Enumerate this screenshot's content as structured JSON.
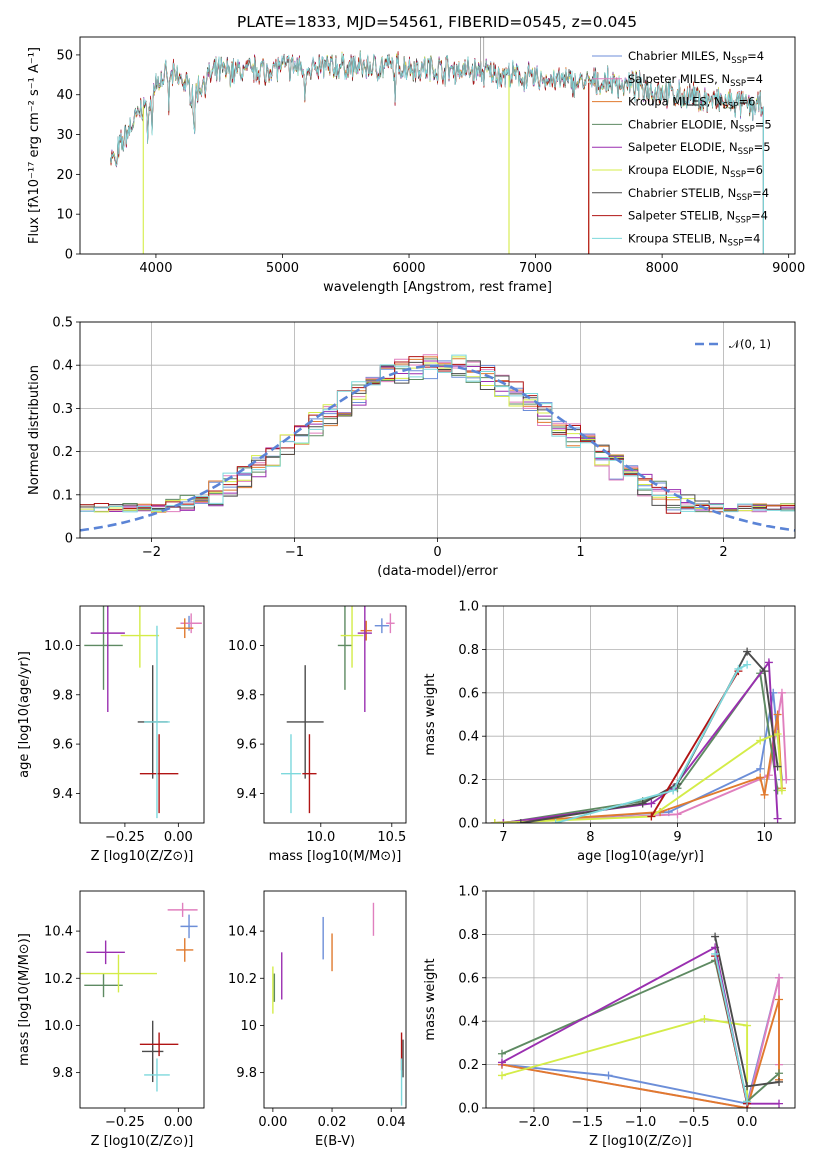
{
  "figure_title": "PLATE=1833, MJD=54561, FIBERID=0545, z=0.045",
  "colors": {
    "Chabrier MILES": "#6c8ed8",
    "Salpeter MILES": "#e07fbe",
    "Kroupa MILES": "#e07a2e",
    "Chabrier ELODIE": "#5e8a62",
    "Salpeter ELODIE": "#9a2fb0",
    "Kroupa ELODIE": "#d4ec48",
    "Chabrier STELIB": "#4b4b4b",
    "Salpeter STELIB": "#b01414",
    "Kroupa STELIB": "#7dd8dc",
    "normal": "#5b84d6"
  },
  "chart_data": [
    {
      "id": "spectrum",
      "type": "line",
      "title": "PLATE=1833, MJD=54561, FIBERID=0545, z=0.045",
      "xlabel": "wavelength [Angstrom, rest frame]",
      "ylabel": "Flux [fλ10⁻¹⁷ erg cm⁻² s⁻¹ A⁻¹]",
      "xlim": [
        3400,
        9050
      ],
      "ylim": [
        0,
        54.5
      ],
      "xticks": [
        4000,
        5000,
        6000,
        7000,
        8000,
        9000
      ],
      "yticks": [
        0,
        10,
        20,
        30,
        40,
        50
      ],
      "grid": false,
      "legend_position": "top-right",
      "legend": [
        "Chabrier MILES, N_SSP=4",
        "Salpeter MILES, N_SSP=4",
        "Kroupa MILES, N_SSP=6",
        "Chabrier ELODIE, N_SSP=5",
        "Salpeter ELODIE, N_SSP=5",
        "Kroupa ELODIE, N_SSP=6",
        "Chabrier STELIB, N_SSP=4",
        "Salpeter STELIB, N_SSP=4",
        "Kroupa STELIB, N_SSP=4"
      ],
      "continuum": [
        [
          3640,
          29
        ],
        [
          3700,
          26
        ],
        [
          3800,
          32
        ],
        [
          3900,
          37
        ],
        [
          4000,
          43
        ],
        [
          4100,
          45
        ],
        [
          4200,
          44
        ],
        [
          4300,
          40
        ],
        [
          4400,
          44
        ],
        [
          4500,
          46
        ],
        [
          4700,
          46
        ],
        [
          4900,
          47
        ],
        [
          5000,
          47
        ],
        [
          5200,
          47
        ],
        [
          5500,
          47
        ],
        [
          6000,
          47
        ],
        [
          6500,
          46
        ],
        [
          7000,
          44
        ],
        [
          7400,
          43
        ],
        [
          7600,
          43
        ],
        [
          7800,
          42
        ],
        [
          8100,
          40
        ],
        [
          8500,
          38
        ],
        [
          8800,
          37
        ]
      ],
      "model_ranges": [
        {
          "series": "Kroupa ELODIE",
          "x": [
            3900,
            6790
          ]
        },
        {
          "series": "Kroupa MILES",
          "x": [
            3640,
            7420
          ]
        },
        {
          "series": "Salpeter STELIB",
          "x": [
            3640,
            7420
          ]
        },
        {
          "series": "Chabrier STELIB",
          "x": [
            3640,
            8800
          ]
        },
        {
          "series": "Kroupa STELIB",
          "x": [
            3640,
            8800
          ]
        }
      ]
    },
    {
      "id": "residuals",
      "type": "line",
      "xlabel": "(data-model)/error",
      "ylabel": "Normed distribution",
      "xlim": [
        -2.5,
        2.5
      ],
      "ylim": [
        0,
        0.5
      ],
      "xticks": [
        -2,
        -1,
        0,
        1,
        2
      ],
      "yticks": [
        0.0,
        0.1,
        0.2,
        0.3,
        0.4,
        0.5
      ],
      "grid": true,
      "legend_position": "top-right",
      "legend": [
        "𝒩(0, 1)"
      ],
      "normal": {
        "mean": 0,
        "sigma": 1
      },
      "histogram_bins": 50
    },
    {
      "id": "age-vs-Z",
      "type": "scatter",
      "xlabel": "Z [log10(Z/Z⊙)]",
      "ylabel": "age  [log10(age/yr)]",
      "xlim": [
        -0.46,
        0.12
      ],
      "ylim": [
        9.28,
        10.16
      ],
      "xticks": [
        -0.25,
        0.0
      ],
      "yticks": [
        9.4,
        9.6,
        9.8,
        10.0
      ],
      "grid": false,
      "points": [
        {
          "series": "Chabrier MILES",
          "x": 0.05,
          "y": 10.09,
          "xerr": 0.04,
          "yerr": 0.03
        },
        {
          "series": "Salpeter MILES",
          "x": 0.06,
          "y": 10.09,
          "xerr": 0.05,
          "yerr": 0.04
        },
        {
          "series": "Kroupa MILES",
          "x": 0.03,
          "y": 10.07,
          "xerr": 0.04,
          "yerr": 0.04
        },
        {
          "series": "Chabrier ELODIE",
          "x": -0.35,
          "y": 10.0,
          "xerr": 0.09,
          "yerr": 0.18
        },
        {
          "series": "Salpeter ELODIE",
          "x": -0.33,
          "y": 10.05,
          "xerr": 0.08,
          "yerr": 0.32
        },
        {
          "series": "Kroupa ELODIE",
          "x": -0.18,
          "y": 10.04,
          "xerr": 0.09,
          "yerr": 0.13
        },
        {
          "series": "Chabrier STELIB",
          "x": -0.12,
          "y": 9.69,
          "xerr": 0.07,
          "yerr": 0.23
        },
        {
          "series": "Salpeter STELIB",
          "x": -0.09,
          "y": 9.48,
          "xerr": 0.09,
          "yerr": 0.16
        },
        {
          "series": "Kroupa STELIB",
          "x": -0.1,
          "y": 9.69,
          "xerr": 0.06,
          "yerr": 0.39
        }
      ]
    },
    {
      "id": "age-vs-mass",
      "type": "scatter",
      "xlabel": "mass [log10(M/M⊙)]",
      "ylabel": "",
      "xlim": [
        9.6,
        10.6
      ],
      "ylim": [
        9.28,
        10.16
      ],
      "xticks": [
        10.0,
        10.5
      ],
      "yticks": [
        9.4,
        9.6,
        9.8,
        10.0
      ],
      "grid": false,
      "points": [
        {
          "series": "Chabrier MILES",
          "x": 10.43,
          "y": 10.08,
          "xerr": 0.05,
          "yerr": 0.03
        },
        {
          "series": "Salpeter MILES",
          "x": 10.49,
          "y": 10.09,
          "xerr": 0.03,
          "yerr": 0.04
        },
        {
          "series": "Kroupa MILES",
          "x": 10.32,
          "y": 10.06,
          "xerr": 0.04,
          "yerr": 0.04
        },
        {
          "series": "Chabrier ELODIE",
          "x": 10.17,
          "y": 10.0,
          "xerr": 0.05,
          "yerr": 0.18
        },
        {
          "series": "Salpeter ELODIE",
          "x": 10.31,
          "y": 10.05,
          "xerr": 0.05,
          "yerr": 0.32
        },
        {
          "series": "Kroupa ELODIE",
          "x": 10.22,
          "y": 10.04,
          "xerr": 0.08,
          "yerr": 0.13
        },
        {
          "series": "Chabrier STELIB",
          "x": 9.89,
          "y": 9.69,
          "xerr": 0.13,
          "yerr": 0.23
        },
        {
          "series": "Salpeter STELIB",
          "x": 9.92,
          "y": 9.48,
          "xerr": 0.05,
          "yerr": 0.16
        },
        {
          "series": "Kroupa STELIB",
          "x": 9.79,
          "y": 9.48,
          "xerr": 0.07,
          "yerr": 0.16
        }
      ]
    },
    {
      "id": "weight-vs-age",
      "type": "line",
      "xlabel": "age  [log10(age/yr)]",
      "ylabel": "mass weight",
      "xlim": [
        6.8,
        10.35
      ],
      "ylim": [
        0,
        1.0
      ],
      "xticks": [
        7,
        8,
        9,
        10
      ],
      "yticks": [
        0.0,
        0.2,
        0.4,
        0.6,
        0.8,
        1.0
      ],
      "grid": true,
      "series": [
        {
          "name": "Chabrier MILES",
          "points": [
            [
              6.9,
              0.0
            ],
            [
              8.9,
              0.05
            ],
            [
              9.95,
              0.25
            ],
            [
              10.1,
              0.6
            ],
            [
              10.2,
              0.2
            ]
          ]
        },
        {
          "name": "Salpeter MILES",
          "points": [
            [
              6.9,
              0.0
            ],
            [
              9.0,
              0.04
            ],
            [
              10.05,
              0.22
            ],
            [
              10.2,
              0.6
            ],
            [
              10.25,
              0.2
            ]
          ]
        },
        {
          "name": "Kroupa MILES",
          "points": [
            [
              6.9,
              0.0
            ],
            [
              8.8,
              0.05
            ],
            [
              9.95,
              0.21
            ],
            [
              10.0,
              0.13
            ],
            [
              10.15,
              0.5
            ],
            [
              10.2,
              0.16
            ]
          ]
        },
        {
          "name": "Chabrier ELODIE",
          "points": [
            [
              7.0,
              0.0
            ],
            [
              8.6,
              0.1
            ],
            [
              9.0,
              0.16
            ],
            [
              9.95,
              0.69
            ],
            [
              10.15,
              0.15
            ]
          ]
        },
        {
          "name": "Salpeter ELODIE",
          "points": [
            [
              7.0,
              0.0
            ],
            [
              8.7,
              0.09
            ],
            [
              8.95,
              0.16
            ],
            [
              10.05,
              0.74
            ],
            [
              10.15,
              0.02
            ]
          ]
        },
        {
          "name": "Kroupa ELODIE",
          "points": [
            [
              6.9,
              0.0
            ],
            [
              8.7,
              0.03
            ],
            [
              9.95,
              0.38
            ],
            [
              10.15,
              0.41
            ],
            [
              10.2,
              0.15
            ]
          ]
        },
        {
          "name": "Chabrier STELIB",
          "points": [
            [
              7.2,
              0.0
            ],
            [
              8.6,
              0.09
            ],
            [
              9.0,
              0.18
            ],
            [
              9.8,
              0.79
            ],
            [
              10.0,
              0.7
            ],
            [
              10.15,
              0.26
            ]
          ]
        },
        {
          "name": "Salpeter STELIB",
          "points": [
            [
              8.7,
              0.03
            ],
            [
              9.7,
              0.7
            ]
          ]
        },
        {
          "name": "Kroupa STELIB",
          "points": [
            [
              7.6,
              0.0
            ],
            [
              8.95,
              0.15
            ],
            [
              9.7,
              0.71
            ],
            [
              9.8,
              0.73
            ]
          ]
        }
      ]
    },
    {
      "id": "mass-vs-Z",
      "type": "scatter",
      "xlabel": "Z [log10(Z/Z⊙)]",
      "ylabel": "mass [log10(M/M⊙)]",
      "xlim": [
        -0.46,
        0.12
      ],
      "ylim": [
        9.65,
        10.57
      ],
      "xticks": [
        -0.25,
        0.0
      ],
      "yticks": [
        9.8,
        10.0,
        10.2,
        10.4
      ],
      "grid": false,
      "points": [
        {
          "series": "Chabrier MILES",
          "x": 0.05,
          "y": 10.42,
          "xerr": 0.04,
          "yerr": 0.05
        },
        {
          "series": "Salpeter MILES",
          "x": 0.02,
          "y": 10.49,
          "xerr": 0.07,
          "yerr": 0.03
        },
        {
          "series": "Kroupa MILES",
          "x": 0.03,
          "y": 10.32,
          "xerr": 0.04,
          "yerr": 0.05
        },
        {
          "series": "Chabrier ELODIE",
          "x": -0.35,
          "y": 10.17,
          "xerr": 0.09,
          "yerr": 0.05
        },
        {
          "series": "Salpeter ELODIE",
          "x": -0.34,
          "y": 10.31,
          "xerr": 0.09,
          "yerr": 0.05
        },
        {
          "series": "Kroupa ELODIE",
          "x": -0.28,
          "y": 10.22,
          "xerr": 0.18,
          "yerr": 0.08
        },
        {
          "series": "Chabrier STELIB",
          "x": -0.12,
          "y": 9.89,
          "xerr": 0.05,
          "yerr": 0.13
        },
        {
          "series": "Salpeter STELIB",
          "x": -0.09,
          "y": 9.92,
          "xerr": 0.09,
          "yerr": 0.05
        },
        {
          "series": "Kroupa STELIB",
          "x": -0.1,
          "y": 9.79,
          "xerr": 0.06,
          "yerr": 0.07
        }
      ]
    },
    {
      "id": "mass-vs-ebv",
      "type": "scatter",
      "xlabel": "E(B-V)",
      "ylabel": "",
      "xlim": [
        -0.003,
        0.045
      ],
      "ylim": [
        9.65,
        10.57
      ],
      "xticks": [
        0.0,
        0.02,
        0.04
      ],
      "yticks": [
        9.8,
        10.0,
        10.2,
        10.4
      ],
      "grid": false,
      "points": [
        {
          "series": "Chabrier MILES",
          "x": 0.017,
          "y": 10.37,
          "xerr": 0.0,
          "yerr": 0.09
        },
        {
          "series": "Salpeter MILES",
          "x": 0.034,
          "y": 10.45,
          "xerr": 0.0,
          "yerr": 0.07
        },
        {
          "series": "Kroupa MILES",
          "x": 0.02,
          "y": 10.31,
          "xerr": 0.0,
          "yerr": 0.08
        },
        {
          "series": "Chabrier ELODIE",
          "x": 0.0005,
          "y": 10.16,
          "xerr": 0.0,
          "yerr": 0.06
        },
        {
          "series": "Salpeter ELODIE",
          "x": 0.003,
          "y": 10.21,
          "xerr": 0.0,
          "yerr": 0.1
        },
        {
          "series": "Kroupa ELODIE",
          "x": 0.0,
          "y": 10.15,
          "xerr": 0.0,
          "yerr": 0.1
        },
        {
          "series": "Chabrier STELIB",
          "x": 0.044,
          "y": 9.86,
          "xerr": 0.0,
          "yerr": 0.08
        },
        {
          "series": "Salpeter STELIB",
          "x": 0.0435,
          "y": 9.89,
          "xerr": 0.0,
          "yerr": 0.08
        },
        {
          "series": "Kroupa STELIB",
          "x": 0.0435,
          "y": 9.76,
          "xerr": 0.0,
          "yerr": 0.1
        }
      ]
    },
    {
      "id": "weight-vs-Z",
      "type": "line",
      "xlabel": "Z [log10(Z/Z⊙)]",
      "ylabel": "mass weight",
      "xlim": [
        -2.45,
        0.45
      ],
      "ylim": [
        0,
        1.0
      ],
      "xticks": [
        -2.0,
        -1.5,
        -1.0,
        -0.5,
        0.0
      ],
      "yticks": [
        0.0,
        0.2,
        0.4,
        0.6,
        0.8,
        1.0
      ],
      "grid": true,
      "series": [
        {
          "name": "Chabrier MILES",
          "points": [
            [
              -2.3,
              0.2
            ],
            [
              -1.3,
              0.15
            ],
            [
              0.0,
              0.02
            ],
            [
              0.3,
              0.6
            ]
          ]
        },
        {
          "name": "Salpeter MILES",
          "points": [
            [
              -2.3,
              0.2
            ],
            [
              0.0,
              0.0
            ],
            [
              0.3,
              0.6
            ],
            [
              0.3,
              0.2
            ]
          ]
        },
        {
          "name": "Kroupa MILES",
          "points": [
            [
              -2.3,
              0.2
            ],
            [
              0.0,
              0.0
            ],
            [
              0.3,
              0.5
            ],
            [
              0.3,
              0.13
            ]
          ]
        },
        {
          "name": "Chabrier ELODIE",
          "points": [
            [
              -2.3,
              0.25
            ],
            [
              -0.3,
              0.68
            ],
            [
              0.0,
              0.03
            ],
            [
              0.3,
              0.16
            ]
          ]
        },
        {
          "name": "Salpeter ELODIE",
          "points": [
            [
              -2.3,
              0.21
            ],
            [
              -0.3,
              0.74
            ],
            [
              0.0,
              0.02
            ],
            [
              0.3,
              0.02
            ]
          ]
        },
        {
          "name": "Kroupa ELODIE",
          "points": [
            [
              -2.3,
              0.15
            ],
            [
              -0.4,
              0.41
            ],
            [
              0.0,
              0.38
            ],
            [
              0.0,
              0.03
            ]
          ]
        },
        {
          "name": "Chabrier STELIB",
          "points": [
            [
              -0.3,
              0.79
            ],
            [
              0.0,
              0.1
            ],
            [
              0.3,
              0.12
            ]
          ]
        },
        {
          "name": "Salpeter STELIB",
          "points": [
            [
              -0.3,
              0.7
            ],
            [
              0.0,
              0.02
            ]
          ]
        },
        {
          "name": "Kroupa STELIB",
          "points": [
            [
              -0.3,
              0.71
            ],
            [
              0.0,
              0.03
            ]
          ]
        }
      ]
    }
  ]
}
